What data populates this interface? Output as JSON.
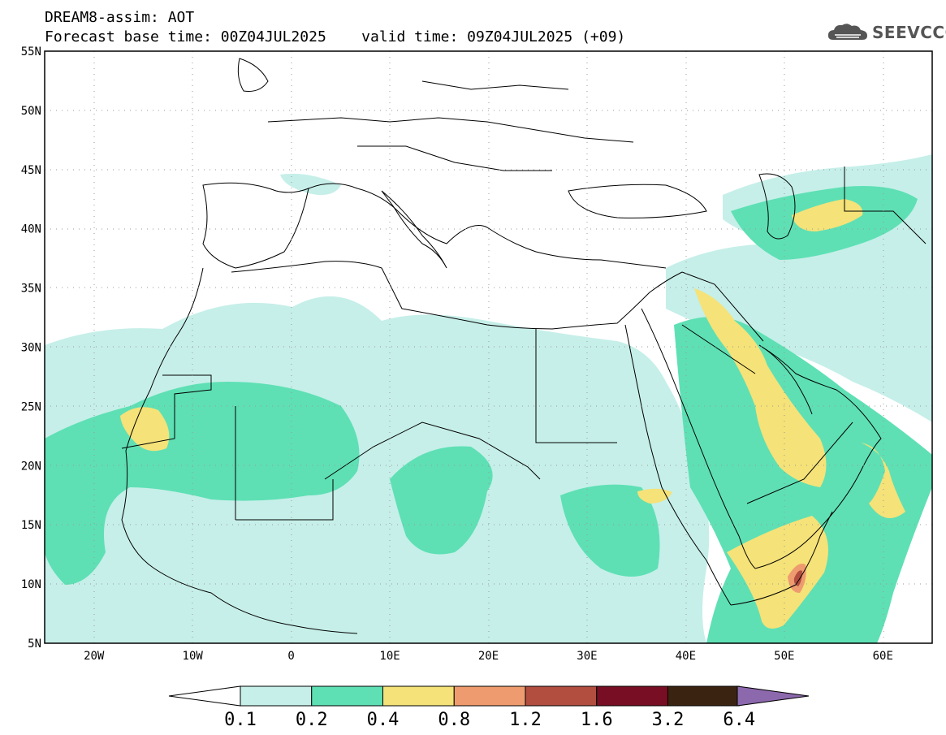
{
  "header": {
    "title": "DREAM8-assim: AOT",
    "base_time": "Forecast base time: 00Z04JUL2025",
    "valid_time": "valid time: 09Z04JUL2025 (+09)"
  },
  "logo": {
    "text": "SEEVCCC",
    "icon": "cloud-icon"
  },
  "map": {
    "lon_range": [
      -25,
      65
    ],
    "lat_range": [
      5,
      55
    ],
    "lat_ticks": [
      "5N",
      "10N",
      "15N",
      "20N",
      "25N",
      "30N",
      "35N",
      "40N",
      "45N",
      "50N",
      "55N"
    ],
    "lon_ticks": [
      "20W",
      "10W",
      "0",
      "10E",
      "20E",
      "30E",
      "40E",
      "50E",
      "60E"
    ],
    "grid": "dotted"
  },
  "colorbar": {
    "levels": [
      "0.1",
      "0.2",
      "0.4",
      "0.8",
      "1.2",
      "1.6",
      "3.2",
      "6.4"
    ],
    "colors": [
      "#c6efe9",
      "#5ee0b4",
      "#f5e278",
      "#ee9b6f",
      "#b14e3f",
      "#780e23",
      "#3a2411",
      "#8c68ad"
    ]
  }
}
